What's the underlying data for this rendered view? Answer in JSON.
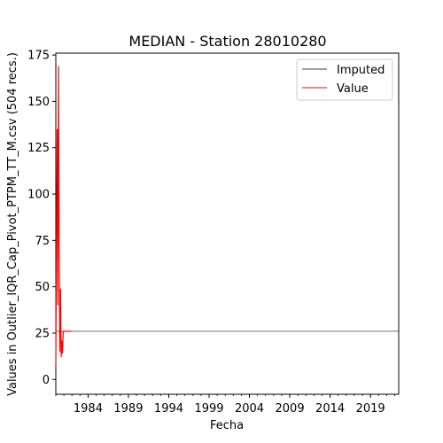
{
  "chart_data": {
    "type": "line",
    "title": "MEDIAN - Station 28010280",
    "xlabel": "Fecha",
    "ylabel": "Values in Outlier_IQR_Cap_Pivot_PTPM_TT_M.csv (504 recs.)",
    "xlim": [
      1980.0,
      2022.5
    ],
    "ylim": [
      -8,
      176
    ],
    "x_ticks": [
      1984,
      1989,
      1994,
      1999,
      2004,
      2009,
      2014,
      2019
    ],
    "x_tick_labels": [
      "1984",
      "1989",
      "1994",
      "1999",
      "2004",
      "2009",
      "2014",
      "2019"
    ],
    "y_ticks": [
      0,
      25,
      50,
      75,
      100,
      125,
      150,
      175
    ],
    "y_tick_labels": [
      "0",
      "25",
      "50",
      "75",
      "100",
      "125",
      "150",
      "175"
    ],
    "legend_position": "top-right",
    "grid": false,
    "series": [
      {
        "name": "Imputed",
        "color": "#404040",
        "x": [
          1980.0,
          2022.5
        ],
        "y": [
          26,
          26
        ]
      },
      {
        "name": "Value",
        "color": "#ff0000",
        "x": [
          1980.0,
          1980.08,
          1980.17,
          1980.25,
          1980.33,
          1980.42,
          1980.5,
          1980.58,
          1980.67,
          1980.75,
          1980.83,
          1980.92,
          1981.0,
          1981.08,
          1981.17,
          1981.25,
          1981.33,
          1981.42,
          1981.5,
          1981.58,
          1981.67,
          1981.75,
          1981.83,
          1981.92
        ],
        "y": [
          7,
          75,
          135,
          40,
          169,
          72,
          15,
          49,
          12,
          21,
          14,
          26,
          26,
          26,
          26,
          26,
          26,
          26,
          26,
          26,
          26,
          26,
          26,
          26
        ]
      }
    ]
  }
}
